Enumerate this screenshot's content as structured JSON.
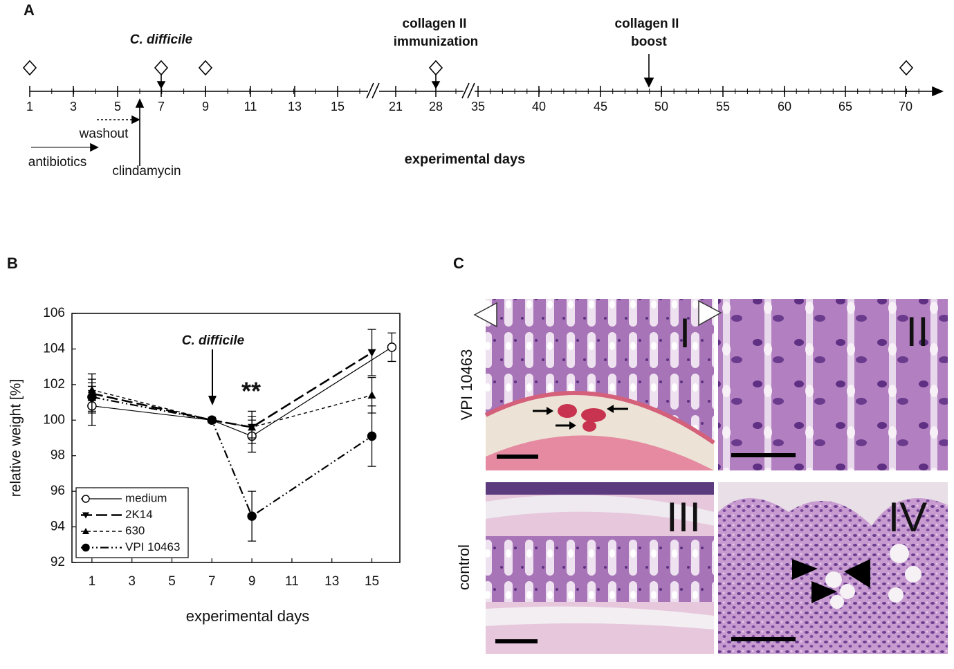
{
  "panel_a": {
    "label": "A",
    "ticks": [
      1,
      3,
      5,
      7,
      9,
      11,
      13,
      15,
      21,
      28,
      35,
      40,
      45,
      50,
      55,
      60,
      65,
      70
    ],
    "c_difficile": "C. difficile",
    "immunization": [
      "collagen II",
      "immunization"
    ],
    "boost": [
      "collagen II",
      "boost"
    ],
    "washout": "washout",
    "antibiotics": "antibiotics",
    "clindamycin": "clindamycin",
    "axis_label": "experimental days"
  },
  "chart_data": {
    "type": "line",
    "label": "B",
    "ylabel": "relative weight [%]",
    "xlabel": "experimental days",
    "annotations": [
      "C. difficile",
      "**"
    ],
    "xlim": [
      0,
      16.4
    ],
    "xticks": [
      1,
      3,
      5,
      7,
      9,
      11,
      13,
      15
    ],
    "ylim": [
      92,
      106
    ],
    "yticks": [
      92,
      94,
      96,
      98,
      100,
      102,
      104,
      106
    ],
    "legend": "lower left",
    "series": [
      {
        "name": "medium",
        "color": "#000000",
        "dash": "solid",
        "marker": "circle-open",
        "x": [
          1,
          7,
          9,
          16
        ],
        "values": [
          100.8,
          100,
          99.1,
          104.1
        ],
        "errors": [
          1.1,
          0,
          0.9,
          0.8
        ]
      },
      {
        "name": "2K14",
        "color": "#000000",
        "dash": "long",
        "marker": "triangle-down",
        "x": [
          1,
          7,
          9,
          15
        ],
        "values": [
          101.5,
          100,
          99.6,
          103.8
        ],
        "errors": [
          1.1,
          0,
          0.9,
          1.3
        ]
      },
      {
        "name": "630",
        "color": "#000000",
        "dash": "short",
        "marker": "triangle-up",
        "x": [
          1,
          7,
          9,
          15
        ],
        "values": [
          101.7,
          100,
          99.6,
          101.4
        ],
        "errors": [
          0.6,
          0,
          0.6,
          1.0
        ]
      },
      {
        "name": "VPI 10463",
        "color": "#000000",
        "dash": "dashdotdot",
        "marker": "circle",
        "x": [
          1,
          7,
          9,
          15
        ],
        "values": [
          101.3,
          100,
          94.6,
          99.1
        ],
        "errors": [
          0.8,
          0,
          1.4,
          1.7
        ]
      }
    ]
  },
  "panel_c": {
    "label": "C",
    "rows": [
      "VPI 10463",
      "control"
    ],
    "images": [
      "I",
      "II",
      "III",
      "IV"
    ]
  }
}
